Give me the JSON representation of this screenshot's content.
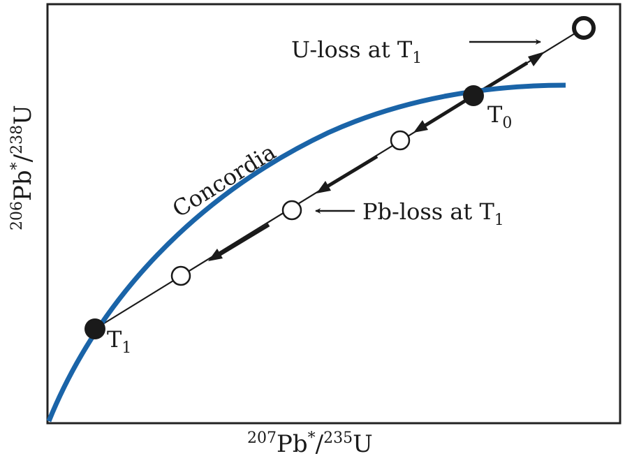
{
  "labels": {
    "y_axis_main": "Pb",
    "y_axis_iso1": "206",
    "y_axis_star": "*",
    "y_axis_slash": "/",
    "y_axis_iso2": "238",
    "y_axis_el": "U",
    "x_axis_main": "Pb",
    "x_axis_iso1": "207",
    "x_axis_star": "*",
    "x_axis_slash": "/",
    "x_axis_iso2": "235",
    "x_axis_el": "U",
    "concordia": "Concordia",
    "t0_letter": "T",
    "t0_sub": "0",
    "t1_letter": "T",
    "t1_sub": "1",
    "u_loss_text": "U-loss at T",
    "u_loss_sub": "1",
    "pb_loss_text": "Pb-loss at T",
    "pb_loss_sub": "1"
  },
  "colors": {
    "concordia": "#1a64a8",
    "ink": "#1a1a1a",
    "frame": "#222222",
    "open_fill": "#ffffff"
  }
}
